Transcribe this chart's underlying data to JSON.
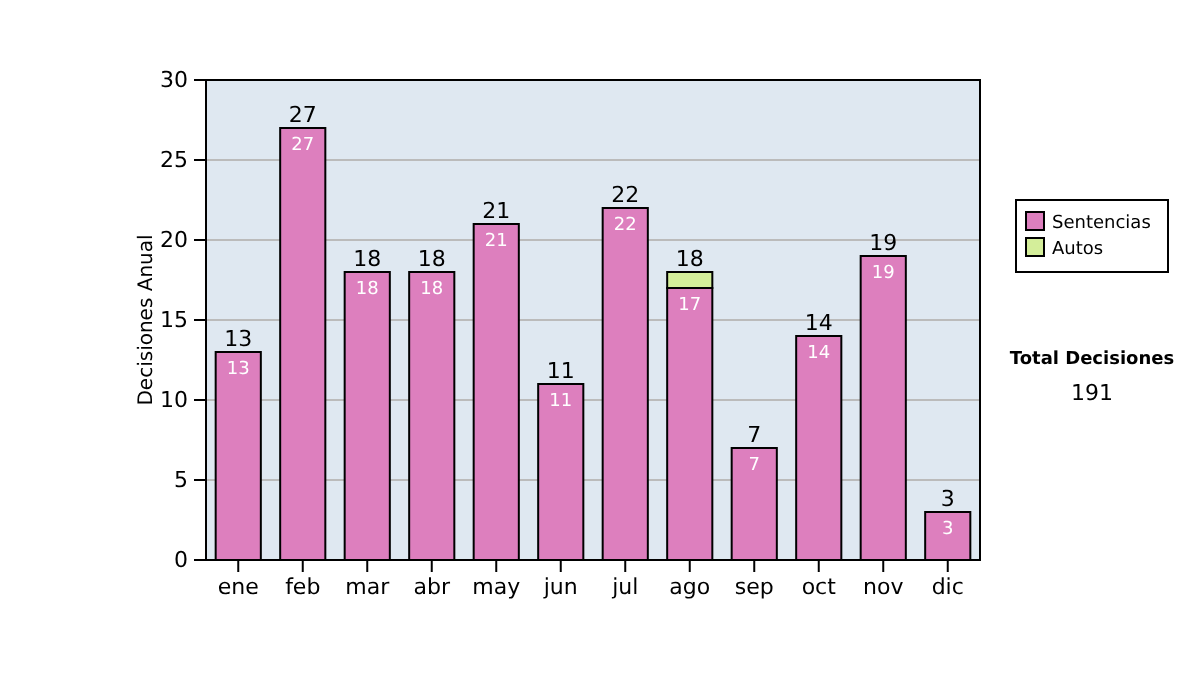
{
  "chart_data": {
    "type": "bar",
    "stacked": true,
    "ylabel": "Decisiones Anual",
    "categories": [
      "ene",
      "feb",
      "mar",
      "abr",
      "may",
      "jun",
      "jul",
      "ago",
      "sep",
      "oct",
      "nov",
      "dic"
    ],
    "series": [
      {
        "name": "Sentencias",
        "color": "#dd7fbe",
        "values": [
          13,
          27,
          18,
          18,
          21,
          11,
          22,
          17,
          7,
          14,
          19,
          3
        ],
        "value_labels": [
          "13",
          "27",
          "18",
          "18",
          "21",
          "11",
          "22",
          "17",
          "7",
          "14",
          "19",
          "3"
        ]
      },
      {
        "name": "Autos",
        "color": "#d4ee9a",
        "values": [
          0,
          0,
          0,
          0,
          0,
          0,
          0,
          1,
          0,
          0,
          0,
          0
        ]
      }
    ],
    "totals": [
      "13",
      "27",
      "18",
      "18",
      "21",
      "11",
      "22",
      "18",
      "7",
      "14",
      "19",
      "3"
    ],
    "ylim": [
      0,
      30
    ],
    "yticks": [
      0,
      5,
      10,
      15,
      20,
      25,
      30
    ],
    "grid": "y",
    "legend": "right",
    "annotations": [
      "Total Decisiones",
      "191"
    ]
  }
}
